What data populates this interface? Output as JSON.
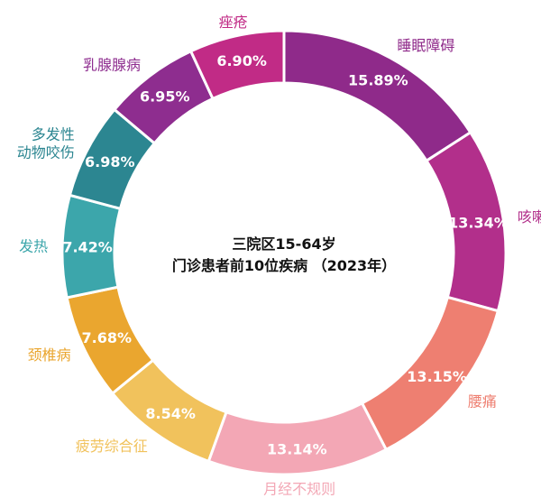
{
  "chart_data": {
    "type": "pie",
    "title": [
      "三院区15-64岁",
      "门诊患者前10位疾病 （2023年）"
    ],
    "series": [
      {
        "label": "睡眠障碍",
        "value": 15.89,
        "value_label": "15.89%",
        "color": "#8f2a8a"
      },
      {
        "label": "咳嗽",
        "value": 13.34,
        "value_label": "13.34%",
        "color": "#b22f8b"
      },
      {
        "label": "腰痛",
        "value": 13.15,
        "value_label": "13.15%",
        "color": "#ee7f71"
      },
      {
        "label": "月经不规则",
        "value": 13.14,
        "value_label": "13.14%",
        "color": "#f3a7b5"
      },
      {
        "label": "疲劳综合征",
        "value": 8.54,
        "value_label": "8.54%",
        "color": "#f1c25c"
      },
      {
        "label": "颈椎病",
        "value": 7.68,
        "value_label": "7.68%",
        "color": "#eaa62f"
      },
      {
        "label": "发热",
        "value": 7.42,
        "value_label": "7.42%",
        "color": "#3ca6ab"
      },
      {
        "label": "多发性\n动物咬伤",
        "value": 6.98,
        "value_label": "6.98%",
        "color": "#2c8691"
      },
      {
        "label": "乳腺腺病",
        "value": 6.95,
        "value_label": "6.95%",
        "color": "#8e2d8f"
      },
      {
        "label": "痤疮",
        "value": 6.9,
        "value_label": "6.90%",
        "color": "#c12b86"
      }
    ]
  }
}
